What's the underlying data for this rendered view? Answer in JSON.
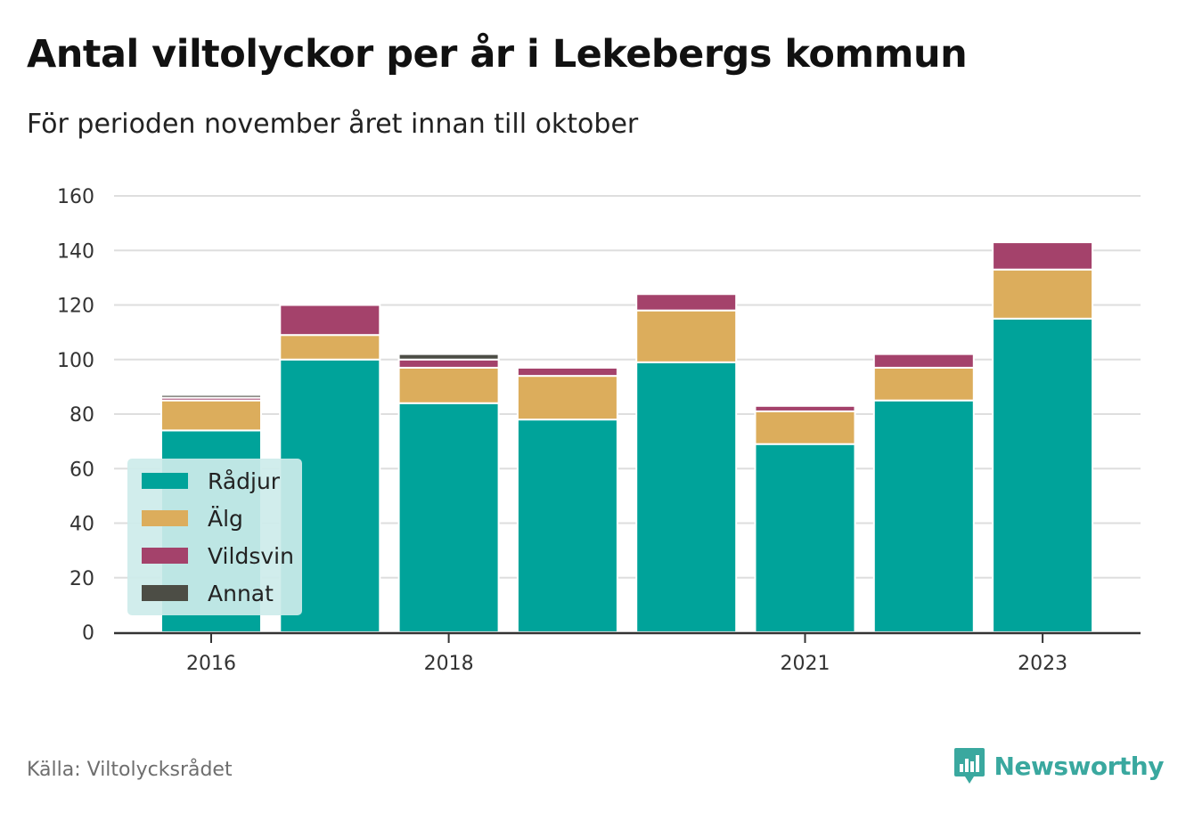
{
  "title": "Antal viltolyckor per år i Lekebergs kommun",
  "subtitle": "För perioden november året innan till oktober",
  "source": "Källa: Viltolycksrådet",
  "brand": {
    "name": "Newsworthy",
    "icon": "newsworthy-logo-icon"
  },
  "colors": {
    "radjur": "#00a39a",
    "alg": "#dcad5c",
    "vildsvin": "#a4426b",
    "annat": "#4c4d45",
    "legend_bg": "#cdebea",
    "grid": "#dedede",
    "axis": "#333333",
    "brand": "#3aa89f"
  },
  "chart_data": {
    "type": "bar",
    "stacked": true,
    "x": [
      2016,
      2017,
      2018,
      2019,
      2020,
      2021,
      2022,
      2023
    ],
    "x_tick_labels": [
      "2016",
      "2018",
      "2021",
      "2023"
    ],
    "x_tick_values": [
      2016,
      2018,
      2021,
      2023
    ],
    "ylim": [
      0,
      160
    ],
    "y_ticks": [
      0,
      20,
      40,
      60,
      80,
      100,
      120,
      140,
      160
    ],
    "grid": true,
    "legend_position": "bottom-left",
    "xlabel": "",
    "ylabel": "",
    "series": [
      {
        "name": "Rådjur",
        "color": "#00a39a",
        "values": [
          74,
          100,
          84,
          78,
          99,
          69,
          85,
          115
        ]
      },
      {
        "name": "Älg",
        "color": "#dcad5c",
        "values": [
          11,
          9,
          13,
          16,
          19,
          12,
          12,
          18
        ]
      },
      {
        "name": "Vildsvin",
        "color": "#a4426b",
        "values": [
          1,
          11,
          3,
          3,
          6,
          2,
          5,
          10
        ]
      },
      {
        "name": "Annat",
        "color": "#4c4d45",
        "values": [
          1,
          0,
          2,
          0,
          0,
          0,
          0,
          0
        ]
      }
    ]
  }
}
